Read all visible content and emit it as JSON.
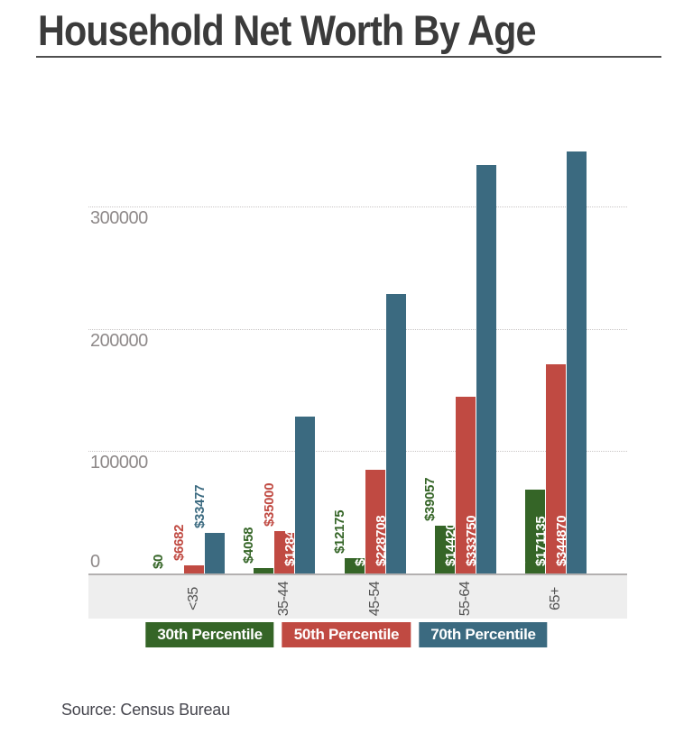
{
  "page": {
    "title": "Household Net Worth By Age",
    "source": "Source: Census Bureau"
  },
  "chart_data": {
    "type": "bar",
    "title": "Household Net Worth By Age",
    "source": "Source: Census Bureau",
    "categories": [
      "<35",
      "35-44",
      "45-54",
      "55-64",
      "65+"
    ],
    "series": [
      {
        "name": "30th Percentile",
        "color": "#356527",
        "values": [
          0,
          4058,
          12175,
          39057,
          68783
        ],
        "bar_labels": [
          "$0",
          "$4058",
          "$12175",
          "$39057",
          "$68783"
        ]
      },
      {
        "name": "50th Percentile",
        "color": "#c04a42",
        "values": [
          6682,
          35000,
          84542,
          144200,
          171135
        ],
        "bar_labels": [
          "$6682",
          "$35000",
          "$84542",
          "$144200",
          "$171135"
        ]
      },
      {
        "name": "70th Percentile",
        "color": "#3b6a80",
        "values": [
          33477,
          128430,
          228708,
          333750,
          344870
        ],
        "bar_labels": [
          "$33477",
          "$128430",
          "$228708",
          "$333750",
          "$344870"
        ]
      }
    ],
    "y_ticks": [
      0,
      100000,
      200000,
      300000
    ],
    "y_tick_labels": [
      "0",
      "100000",
      "200000",
      "300000"
    ],
    "ylim": [
      0,
      352000
    ],
    "grid": "dotted horizontal gridlines",
    "legend_position": "bottom",
    "bar_label_color_inside": "#ffffff",
    "x_band_color": "#eeeeee"
  }
}
